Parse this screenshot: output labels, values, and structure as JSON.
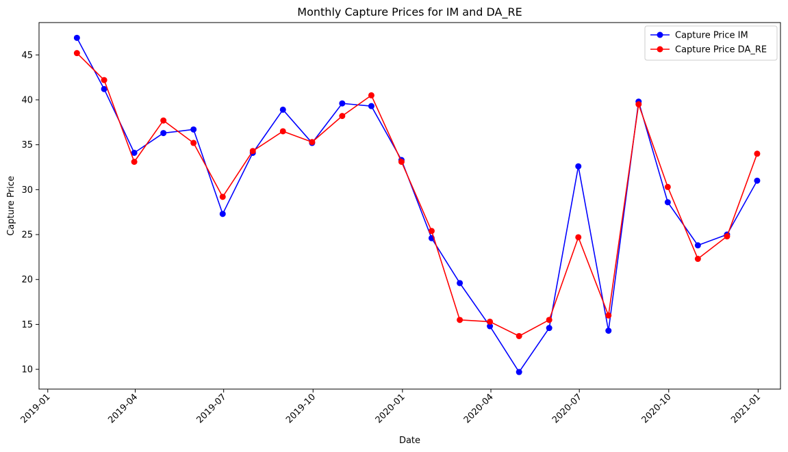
{
  "chart_data": {
    "type": "line",
    "title": "Monthly Capture Prices for IM and DA_RE",
    "xlabel": "Date",
    "ylabel": "Capture Price",
    "xlim": [
      "2018-12-23",
      "2021-01-24"
    ],
    "ylim": [
      7.8,
      48.6
    ],
    "x_ticks": [
      "2019-01-01",
      "2019-04-01",
      "2019-07-01",
      "2019-10-01",
      "2020-01-01",
      "2020-04-01",
      "2020-07-01",
      "2020-10-01",
      "2021-01-01"
    ],
    "x_tick_labels": [
      "2019-01",
      "2019-04",
      "2019-07",
      "2019-10",
      "2020-01",
      "2020-04",
      "2020-07",
      "2020-10",
      "2021-01"
    ],
    "y_ticks": [
      10,
      15,
      20,
      25,
      30,
      35,
      40,
      45
    ],
    "y_tick_labels": [
      "10",
      "15",
      "20",
      "25",
      "30",
      "35",
      "40",
      "45"
    ],
    "grid": false,
    "legend_position": "top-right",
    "x": [
      "2019-01-31",
      "2019-02-28",
      "2019-03-31",
      "2019-04-30",
      "2019-05-31",
      "2019-06-30",
      "2019-07-31",
      "2019-08-31",
      "2019-09-30",
      "2019-10-31",
      "2019-11-30",
      "2019-12-31",
      "2020-01-31",
      "2020-02-29",
      "2020-03-31",
      "2020-04-30",
      "2020-05-31",
      "2020-06-30",
      "2020-07-31",
      "2020-08-31",
      "2020-09-30",
      "2020-10-31",
      "2020-11-30",
      "2020-12-31"
    ],
    "series": [
      {
        "name": "Capture Price IM",
        "color": "#0000ff",
        "marker": "circle",
        "values": [
          46.9,
          41.2,
          34.1,
          36.3,
          36.7,
          27.3,
          34.1,
          38.9,
          35.2,
          39.6,
          39.3,
          33.3,
          24.6,
          19.6,
          14.8,
          9.7,
          14.6,
          32.6,
          14.3,
          39.8,
          28.6,
          23.8,
          25.0,
          31.0
        ]
      },
      {
        "name": "Capture Price DA_RE",
        "color": "#ff0000",
        "marker": "circle",
        "values": [
          45.2,
          42.2,
          33.1,
          37.7,
          35.2,
          29.2,
          34.3,
          36.5,
          35.3,
          38.2,
          40.5,
          33.1,
          25.4,
          15.5,
          15.3,
          13.7,
          15.5,
          24.7,
          16.0,
          39.5,
          30.3,
          22.3,
          24.8,
          34.0
        ]
      }
    ]
  }
}
